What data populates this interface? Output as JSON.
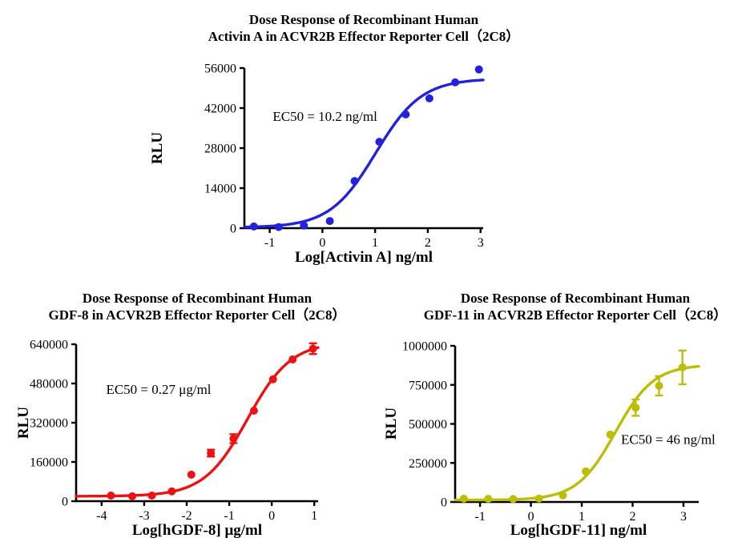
{
  "page": {
    "background": "#ffffff",
    "text_color": "#000000"
  },
  "chart_data": [
    {
      "id": "activin-a",
      "type": "scatter",
      "title_line1": "Dose Response of Recombinant Human",
      "title_line2": "Activin A in ACVR2B Effector Reporter Cell（2C8）",
      "xlabel": "Log[Activin A] ng/ml",
      "ylabel": "RLU",
      "annotation": {
        "text": "EC50 = 10.2 ng/ml",
        "x": 0.05,
        "y": 37500
      },
      "color": "#2222DD",
      "xlim": [
        -1.48,
        3.05
      ],
      "ylim": [
        0,
        56000
      ],
      "xticks": [
        -1,
        0,
        1,
        2,
        3
      ],
      "yticks": [
        0,
        14000,
        28000,
        42000,
        56000
      ],
      "grid": false,
      "legend": "none",
      "points": [
        {
          "x": -1.3,
          "y": 600
        },
        {
          "x": -0.83,
          "y": 400
        },
        {
          "x": -0.35,
          "y": 900
        },
        {
          "x": 0.14,
          "y": 2500
        },
        {
          "x": 0.61,
          "y": 16500
        },
        {
          "x": 1.08,
          "y": 30200
        },
        {
          "x": 1.58,
          "y": 39800
        },
        {
          "x": 2.03,
          "y": 45400
        },
        {
          "x": 2.52,
          "y": 51000
        },
        {
          "x": 2.97,
          "y": 55500
        }
      ],
      "curve": {
        "model": "4PL",
        "bottom": 200,
        "top": 52300,
        "logec50": 1.01,
        "hill": 1.0
      }
    },
    {
      "id": "gdf-8",
      "type": "scatter",
      "title_line1": "Dose Response of Recombinant Human",
      "title_line2": "GDF-8 in ACVR2B Effector Reporter Cell（2C8）",
      "xlabel": "Log[hGDF-8] μg/ml",
      "ylabel": "RLU",
      "annotation": {
        "text": "EC50 = 0.27 μg/ml",
        "x": -2.66,
        "y": 438000
      },
      "color": "#EE1111",
      "xlim": [
        -4.6,
        1.09
      ],
      "ylim": [
        0,
        640000
      ],
      "xticks": [
        -4,
        -3,
        -2,
        -1,
        0,
        1
      ],
      "yticks": [
        0,
        160000,
        320000,
        480000,
        640000
      ],
      "grid": false,
      "legend": "none",
      "points": [
        {
          "x": -3.78,
          "y": 23000
        },
        {
          "x": -3.28,
          "y": 20000
        },
        {
          "x": -2.82,
          "y": 23000
        },
        {
          "x": -2.35,
          "y": 40000
        },
        {
          "x": -1.89,
          "y": 108000
        },
        {
          "x": -1.43,
          "y": 196000,
          "err": 14000
        },
        {
          "x": -0.9,
          "y": 255000,
          "err": 18000
        },
        {
          "x": -0.42,
          "y": 369000
        },
        {
          "x": 0.03,
          "y": 497000
        },
        {
          "x": 0.49,
          "y": 578000
        },
        {
          "x": 0.97,
          "y": 622000,
          "err": 22000
        }
      ],
      "curve": {
        "model": "4PL",
        "bottom": 20000,
        "top": 650000,
        "logec50": -0.57,
        "hill": 0.85
      }
    },
    {
      "id": "gdf-11",
      "type": "scatter",
      "title_line1": "Dose Response of Recombinant Human",
      "title_line2": "GDF-11 in ACVR2B Effector Reporter Cell（2C8）",
      "xlabel": "Log[hGDF-11] ng/ml",
      "ylabel": "RLU",
      "annotation": {
        "text": "EC50 = 46 ng/ml",
        "x": 2.7,
        "y": 372000
      },
      "color": "#BCBE06",
      "xlim": [
        -1.49,
        3.3
      ],
      "ylim": [
        0,
        1000000
      ],
      "xticks": [
        -1,
        0,
        1,
        2,
        3
      ],
      "yticks": [
        0,
        250000,
        500000,
        750000,
        1000000
      ],
      "grid": false,
      "legend": "none",
      "points": [
        {
          "x": -1.32,
          "y": 21000
        },
        {
          "x": -0.84,
          "y": 20000
        },
        {
          "x": -0.35,
          "y": 19000
        },
        {
          "x": 0.16,
          "y": 22000
        },
        {
          "x": 0.63,
          "y": 42000
        },
        {
          "x": 1.08,
          "y": 196000
        },
        {
          "x": 1.56,
          "y": 432000
        },
        {
          "x": 2.06,
          "y": 604000,
          "err": 52000
        },
        {
          "x": 2.52,
          "y": 744000,
          "err": 62000
        },
        {
          "x": 2.98,
          "y": 862000,
          "err": 108000
        }
      ],
      "curve": {
        "model": "4PL",
        "bottom": 12000,
        "top": 880000,
        "logec50": 1.66,
        "hill": 1.15
      }
    }
  ]
}
